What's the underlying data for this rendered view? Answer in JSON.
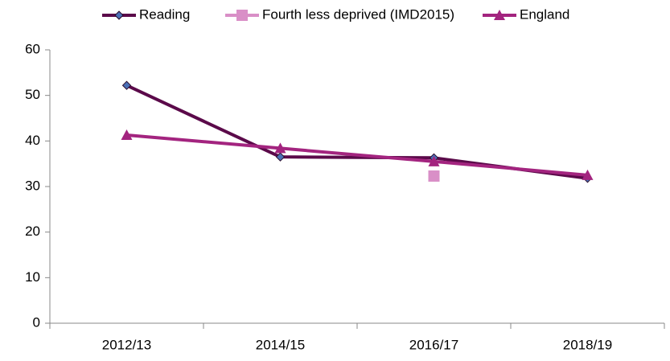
{
  "chart_data": {
    "type": "line",
    "categories": [
      "2012/13",
      "2014/15",
      "2016/17",
      "2018/19"
    ],
    "series": [
      {
        "name": "Reading",
        "color": "#5b0a4a",
        "marker": "diamond",
        "marker_color": "#4a6fb5",
        "values": [
          52.2,
          36.5,
          36.3,
          31.8
        ]
      },
      {
        "name": "Fourth less deprived (IMD2015)",
        "color": "#d98fc7",
        "marker": "square",
        "marker_color": "#d98fc7",
        "values": [
          null,
          null,
          32.3,
          null
        ]
      },
      {
        "name": "England",
        "color": "#a3247f",
        "marker": "triangle",
        "marker_color": "#a3247f",
        "values": [
          41.3,
          38.4,
          35.5,
          32.5
        ]
      }
    ],
    "ylim": [
      0,
      60
    ],
    "yticks": [
      0,
      10,
      20,
      30,
      40,
      50,
      60
    ],
    "grid": false,
    "legend": "top"
  }
}
